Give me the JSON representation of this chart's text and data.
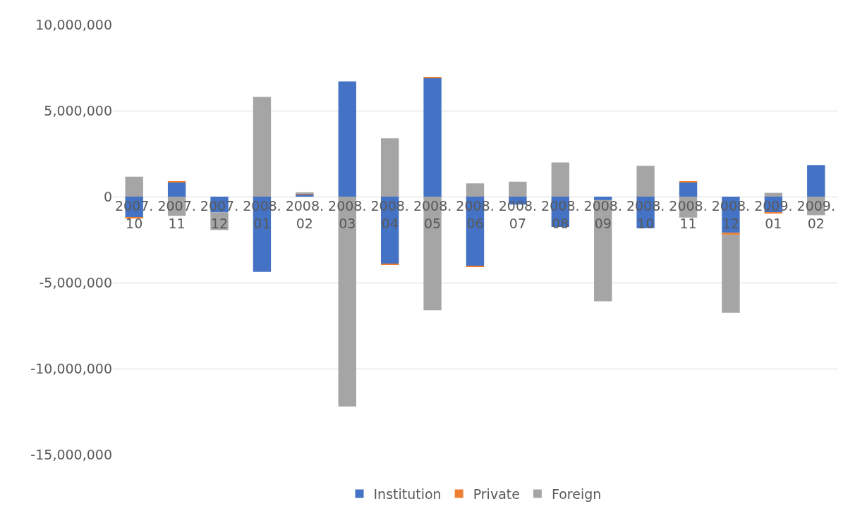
{
  "chart_data": {
    "type": "bar",
    "stacked": true,
    "categories": [
      "2007.10",
      "2007.11",
      "2007.12",
      "2008.01",
      "2008.02",
      "2008.03",
      "2008.04",
      "2008.05",
      "2008.06",
      "2008.07",
      "2008.08",
      "2008.09",
      "2008.10",
      "2008.11",
      "2008.12",
      "2009.01",
      "2009.02"
    ],
    "series": [
      {
        "name": "Institution",
        "color": "#4472c4",
        "values": [
          -1200000,
          860000,
          -920000,
          -4370000,
          140000,
          6700000,
          -3900000,
          6910000,
          -4040000,
          -460000,
          -1760000,
          -200000,
          -1830000,
          830000,
          -2100000,
          -940000,
          1830000
        ]
      },
      {
        "name": "Private",
        "color": "#ed7d31",
        "values": [
          -30000,
          40000,
          null,
          null,
          40000,
          null,
          -40000,
          30000,
          -60000,
          null,
          null,
          null,
          null,
          50000,
          -110000,
          -30000,
          null
        ]
      },
      {
        "name": "Foreign",
        "color": "#a5a5a5",
        "values": [
          1160000,
          -1120000,
          -1020000,
          5800000,
          70000,
          -12200000,
          3390000,
          -6610000,
          770000,
          870000,
          1990000,
          -5890000,
          1790000,
          -1220000,
          -4540000,
          220000,
          -1080000
        ]
      }
    ],
    "ylim": [
      -15000000,
      10000000
    ],
    "yticks": [
      {
        "value": -15000000,
        "label": "-15,000,000"
      },
      {
        "value": -10000000,
        "label": "-10,000,000"
      },
      {
        "value": -5000000,
        "label": "-5,000,000"
      },
      0,
      {
        "value": 5000000,
        "label": "5,000,000"
      },
      {
        "value": 10000000,
        "label": "10,000,000"
      }
    ],
    "grid": "y",
    "legend": "bottom"
  }
}
